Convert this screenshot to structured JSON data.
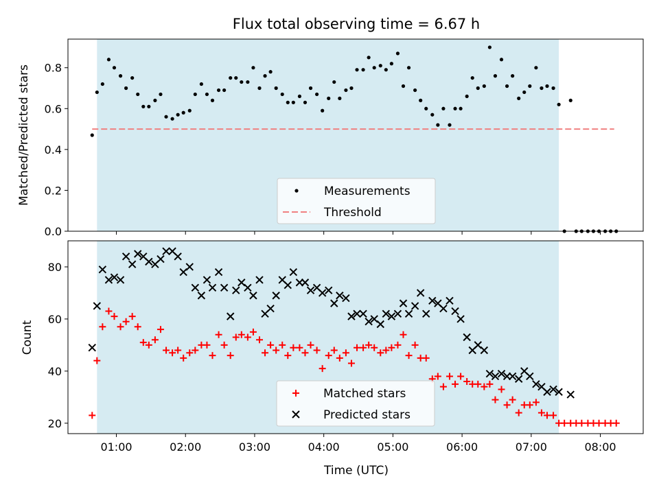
{
  "figure": {
    "title": "Flux total observing time = 6.67 h",
    "xlabel": "Time (UTC)"
  },
  "chart_data": [
    {
      "type": "scatter",
      "ylabel": "Matched/Predicted stars",
      "ylim": [
        0,
        0.94
      ],
      "yticks": [
        0.0,
        0.2,
        0.4,
        0.6,
        0.8
      ],
      "xlim": [
        0.3,
        8.62
      ],
      "observing_window": [
        0.72,
        7.4
      ],
      "legend_position": "lower-center",
      "series": [
        {
          "name": "Measurements",
          "marker": "dot",
          "color": "#000000",
          "points": [
            [
              0.65,
              0.47
            ],
            [
              0.72,
              0.68
            ],
            [
              0.8,
              0.72
            ],
            [
              0.89,
              0.84
            ],
            [
              0.97,
              0.8
            ],
            [
              1.06,
              0.76
            ],
            [
              1.14,
              0.7
            ],
            [
              1.23,
              0.75
            ],
            [
              1.31,
              0.67
            ],
            [
              1.39,
              0.61
            ],
            [
              1.47,
              0.61
            ],
            [
              1.56,
              0.64
            ],
            [
              1.64,
              0.67
            ],
            [
              1.72,
              0.56
            ],
            [
              1.81,
              0.55
            ],
            [
              1.89,
              0.57
            ],
            [
              1.97,
              0.58
            ],
            [
              2.06,
              0.59
            ],
            [
              2.14,
              0.67
            ],
            [
              2.23,
              0.72
            ],
            [
              2.31,
              0.67
            ],
            [
              2.39,
              0.64
            ],
            [
              2.48,
              0.69
            ],
            [
              2.56,
              0.69
            ],
            [
              2.65,
              0.75
            ],
            [
              2.73,
              0.75
            ],
            [
              2.81,
              0.73
            ],
            [
              2.9,
              0.73
            ],
            [
              2.98,
              0.8
            ],
            [
              3.07,
              0.7
            ],
            [
              3.15,
              0.76
            ],
            [
              3.23,
              0.78
            ],
            [
              3.31,
              0.7
            ],
            [
              3.4,
              0.67
            ],
            [
              3.48,
              0.63
            ],
            [
              3.56,
              0.63
            ],
            [
              3.65,
              0.66
            ],
            [
              3.73,
              0.63
            ],
            [
              3.81,
              0.7
            ],
            [
              3.9,
              0.67
            ],
            [
              3.98,
              0.59
            ],
            [
              4.07,
              0.65
            ],
            [
              4.15,
              0.73
            ],
            [
              4.23,
              0.65
            ],
            [
              4.32,
              0.69
            ],
            [
              4.4,
              0.7
            ],
            [
              4.48,
              0.79
            ],
            [
              4.57,
              0.79
            ],
            [
              4.65,
              0.85
            ],
            [
              4.73,
              0.8
            ],
            [
              4.82,
              0.81
            ],
            [
              4.9,
              0.79
            ],
            [
              4.98,
              0.82
            ],
            [
              5.07,
              0.87
            ],
            [
              5.15,
              0.71
            ],
            [
              5.23,
              0.8
            ],
            [
              5.32,
              0.69
            ],
            [
              5.4,
              0.64
            ],
            [
              5.48,
              0.6
            ],
            [
              5.57,
              0.57
            ],
            [
              5.65,
              0.52
            ],
            [
              5.73,
              0.6
            ],
            [
              5.82,
              0.52
            ],
            [
              5.9,
              0.6
            ],
            [
              5.98,
              0.6
            ],
            [
              6.07,
              0.66
            ],
            [
              6.15,
              0.75
            ],
            [
              6.23,
              0.7
            ],
            [
              6.32,
              0.71
            ],
            [
              6.4,
              0.9
            ],
            [
              6.48,
              0.76
            ],
            [
              6.57,
              0.84
            ],
            [
              6.65,
              0.71
            ],
            [
              6.73,
              0.76
            ],
            [
              6.82,
              0.65
            ],
            [
              6.9,
              0.68
            ],
            [
              6.98,
              0.71
            ],
            [
              7.07,
              0.8
            ],
            [
              7.15,
              0.7
            ],
            [
              7.23,
              0.71
            ],
            [
              7.32,
              0.7
            ],
            [
              7.4,
              0.62
            ],
            [
              7.48,
              0.0
            ],
            [
              7.57,
              0.64
            ],
            [
              7.65,
              0.0
            ],
            [
              7.73,
              0.0
            ],
            [
              7.82,
              0.0
            ],
            [
              7.9,
              0.0
            ],
            [
              7.98,
              0.0
            ],
            [
              8.07,
              0.0
            ],
            [
              8.15,
              0.0
            ],
            [
              8.23,
              0.0
            ]
          ]
        },
        {
          "name": "Threshold",
          "marker": "dashed-line",
          "color": "#f08080",
          "points": [
            [
              0.65,
              0.5
            ],
            [
              8.2,
              0.5
            ]
          ]
        }
      ]
    },
    {
      "type": "scatter",
      "ylabel": "Count",
      "ylim": [
        16,
        90
      ],
      "yticks": [
        20,
        40,
        60,
        80
      ],
      "xlim": [
        0.3,
        8.62
      ],
      "observing_window": [
        0.72,
        7.4
      ],
      "legend_position": "lower-center",
      "xtick_values": [
        1,
        2,
        3,
        4,
        5,
        6,
        7,
        8
      ],
      "xtick_labels": [
        "01:00",
        "02:00",
        "03:00",
        "04:00",
        "05:00",
        "06:00",
        "07:00",
        "08:00"
      ],
      "series": [
        {
          "name": "Matched stars",
          "marker": "plus",
          "color": "#ff0000",
          "points": [
            [
              0.65,
              23
            ],
            [
              0.72,
              44
            ],
            [
              0.8,
              57
            ],
            [
              0.89,
              63
            ],
            [
              0.97,
              61
            ],
            [
              1.06,
              57
            ],
            [
              1.14,
              59
            ],
            [
              1.23,
              61
            ],
            [
              1.31,
              57
            ],
            [
              1.39,
              51
            ],
            [
              1.47,
              50
            ],
            [
              1.56,
              52
            ],
            [
              1.64,
              56
            ],
            [
              1.72,
              48
            ],
            [
              1.81,
              47
            ],
            [
              1.89,
              48
            ],
            [
              1.97,
              45
            ],
            [
              2.06,
              47
            ],
            [
              2.14,
              48
            ],
            [
              2.23,
              50
            ],
            [
              2.31,
              50
            ],
            [
              2.39,
              46
            ],
            [
              2.48,
              54
            ],
            [
              2.56,
              50
            ],
            [
              2.65,
              46
            ],
            [
              2.73,
              53
            ],
            [
              2.81,
              54
            ],
            [
              2.9,
              53
            ],
            [
              2.98,
              55
            ],
            [
              3.07,
              52
            ],
            [
              3.15,
              47
            ],
            [
              3.23,
              50
            ],
            [
              3.31,
              48
            ],
            [
              3.4,
              50
            ],
            [
              3.48,
              46
            ],
            [
              3.56,
              49
            ],
            [
              3.65,
              49
            ],
            [
              3.73,
              47
            ],
            [
              3.81,
              50
            ],
            [
              3.9,
              48
            ],
            [
              3.98,
              41
            ],
            [
              4.07,
              46
            ],
            [
              4.15,
              48
            ],
            [
              4.23,
              45
            ],
            [
              4.32,
              47
            ],
            [
              4.4,
              43
            ],
            [
              4.48,
              49
            ],
            [
              4.57,
              49
            ],
            [
              4.65,
              50
            ],
            [
              4.73,
              49
            ],
            [
              4.82,
              47
            ],
            [
              4.9,
              48
            ],
            [
              4.98,
              49
            ],
            [
              5.07,
              50
            ],
            [
              5.15,
              54
            ],
            [
              5.23,
              46
            ],
            [
              5.32,
              50
            ],
            [
              5.4,
              45
            ],
            [
              5.48,
              45
            ],
            [
              5.57,
              37
            ],
            [
              5.65,
              38
            ],
            [
              5.73,
              34
            ],
            [
              5.82,
              38
            ],
            [
              5.9,
              35
            ],
            [
              5.98,
              38
            ],
            [
              6.07,
              36
            ],
            [
              6.15,
              35
            ],
            [
              6.23,
              35
            ],
            [
              6.32,
              34
            ],
            [
              6.4,
              35
            ],
            [
              6.48,
              29
            ],
            [
              6.57,
              33
            ],
            [
              6.65,
              27
            ],
            [
              6.73,
              29
            ],
            [
              6.82,
              24
            ],
            [
              6.9,
              27
            ],
            [
              6.98,
              27
            ],
            [
              7.07,
              28
            ],
            [
              7.15,
              24
            ],
            [
              7.23,
              23
            ],
            [
              7.32,
              23
            ],
            [
              7.4,
              20
            ],
            [
              7.48,
              20
            ],
            [
              7.57,
              20
            ],
            [
              7.65,
              20
            ],
            [
              7.73,
              20
            ],
            [
              7.82,
              20
            ],
            [
              7.9,
              20
            ],
            [
              7.98,
              20
            ],
            [
              8.07,
              20
            ],
            [
              8.15,
              20
            ],
            [
              8.23,
              20
            ]
          ]
        },
        {
          "name": "Predicted stars",
          "marker": "x",
          "color": "#000000",
          "points": [
            [
              0.65,
              49
            ],
            [
              0.72,
              65
            ],
            [
              0.8,
              79
            ],
            [
              0.89,
              75
            ],
            [
              0.97,
              76
            ],
            [
              1.06,
              75
            ],
            [
              1.14,
              84
            ],
            [
              1.23,
              81
            ],
            [
              1.31,
              85
            ],
            [
              1.39,
              84
            ],
            [
              1.47,
              82
            ],
            [
              1.56,
              81
            ],
            [
              1.64,
              83
            ],
            [
              1.72,
              86
            ],
            [
              1.81,
              86
            ],
            [
              1.89,
              84
            ],
            [
              1.97,
              78
            ],
            [
              2.06,
              80
            ],
            [
              2.14,
              72
            ],
            [
              2.23,
              69
            ],
            [
              2.31,
              75
            ],
            [
              2.39,
              72
            ],
            [
              2.48,
              78
            ],
            [
              2.56,
              72
            ],
            [
              2.65,
              61
            ],
            [
              2.73,
              71
            ],
            [
              2.81,
              74
            ],
            [
              2.9,
              72
            ],
            [
              2.98,
              69
            ],
            [
              3.07,
              75
            ],
            [
              3.15,
              62
            ],
            [
              3.23,
              64
            ],
            [
              3.31,
              69
            ],
            [
              3.4,
              75
            ],
            [
              3.48,
              73
            ],
            [
              3.56,
              78
            ],
            [
              3.65,
              74
            ],
            [
              3.73,
              74
            ],
            [
              3.81,
              71
            ],
            [
              3.9,
              72
            ],
            [
              3.98,
              70
            ],
            [
              4.07,
              71
            ],
            [
              4.15,
              66
            ],
            [
              4.23,
              69
            ],
            [
              4.32,
              68
            ],
            [
              4.4,
              61
            ],
            [
              4.48,
              62
            ],
            [
              4.57,
              62
            ],
            [
              4.65,
              59
            ],
            [
              4.73,
              60
            ],
            [
              4.82,
              58
            ],
            [
              4.9,
              62
            ],
            [
              4.98,
              61
            ],
            [
              5.07,
              62
            ],
            [
              5.15,
              66
            ],
            [
              5.23,
              62
            ],
            [
              5.32,
              65
            ],
            [
              5.4,
              70
            ],
            [
              5.48,
              62
            ],
            [
              5.57,
              67
            ],
            [
              5.65,
              66
            ],
            [
              5.73,
              64
            ],
            [
              5.82,
              67
            ],
            [
              5.9,
              63
            ],
            [
              5.98,
              60
            ],
            [
              6.07,
              53
            ],
            [
              6.15,
              48
            ],
            [
              6.23,
              50
            ],
            [
              6.32,
              48
            ],
            [
              6.4,
              39
            ],
            [
              6.48,
              38
            ],
            [
              6.57,
              39
            ],
            [
              6.65,
              38
            ],
            [
              6.73,
              38
            ],
            [
              6.82,
              37
            ],
            [
              6.9,
              40
            ],
            [
              6.98,
              38
            ],
            [
              7.07,
              35
            ],
            [
              7.15,
              34
            ],
            [
              7.23,
              32
            ],
            [
              7.32,
              33
            ],
            [
              7.4,
              32
            ],
            [
              7.57,
              31
            ]
          ]
        }
      ]
    }
  ]
}
